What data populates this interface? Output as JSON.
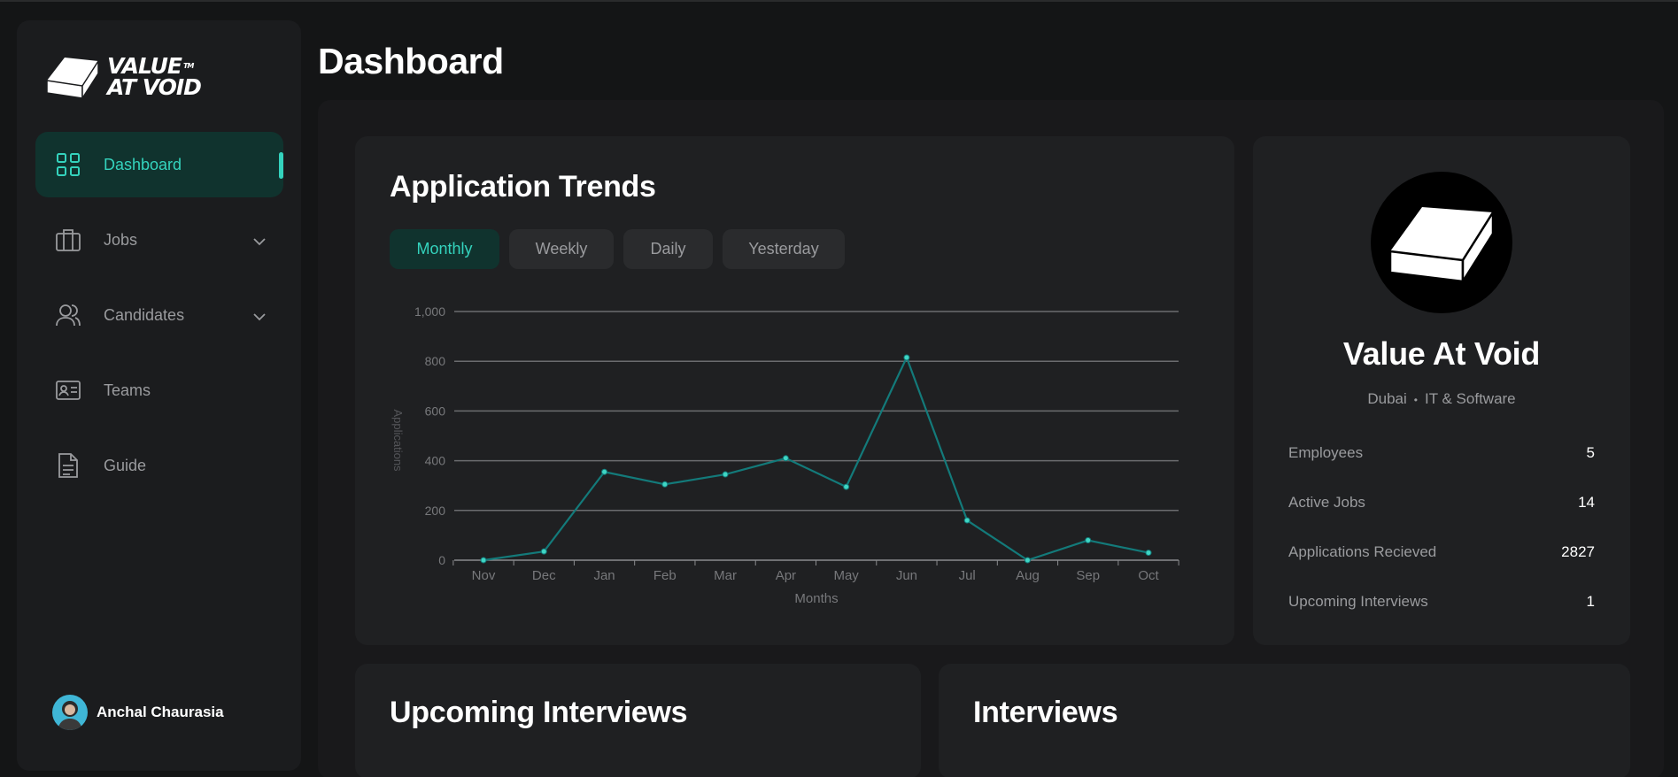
{
  "brand": {
    "line1": "VALUE",
    "line2": "AT VOID",
    "tm": "TM"
  },
  "sidebar": {
    "items": [
      {
        "label": "Dashboard",
        "icon": "grid-icon",
        "active": true
      },
      {
        "label": "Jobs",
        "icon": "briefcase-icon",
        "expandable": true
      },
      {
        "label": "Candidates",
        "icon": "users-icon",
        "expandable": true
      },
      {
        "label": "Teams",
        "icon": "id-card-icon"
      },
      {
        "label": "Guide",
        "icon": "document-icon"
      }
    ],
    "user": {
      "name": "Anchal Chaurasia"
    }
  },
  "page": {
    "title": "Dashboard"
  },
  "trends": {
    "title": "Application Trends",
    "tabs": [
      "Monthly",
      "Weekly",
      "Daily",
      "Yesterday"
    ],
    "active_tab": "Monthly"
  },
  "chart_data": {
    "type": "line",
    "categories": [
      "Nov",
      "Dec",
      "Jan",
      "Feb",
      "Mar",
      "Apr",
      "May",
      "Jun",
      "Jul",
      "Aug",
      "Sep",
      "Oct"
    ],
    "series": [
      {
        "values": [
          0,
          35,
          355,
          305,
          345,
          410,
          295,
          815,
          160,
          0,
          80,
          30
        ]
      }
    ],
    "xlabel": "Months",
    "ylabel": "Applications",
    "ylim": [
      0,
      1000
    ],
    "yticks": [
      "0",
      "200",
      "400",
      "600",
      "800",
      "1,000"
    ],
    "grid": true,
    "color": "#137a7a"
  },
  "company": {
    "name": "Value At Void",
    "location": "Dubai",
    "industry": "IT & Software",
    "separator": "•",
    "stats": [
      {
        "label": "Employees",
        "value": "5"
      },
      {
        "label": "Active Jobs",
        "value": "14"
      },
      {
        "label": "Applications Recieved",
        "value": "2827"
      },
      {
        "label": "Upcoming Interviews",
        "value": "1"
      }
    ]
  },
  "upcoming": {
    "title": "Upcoming Interviews"
  },
  "interviews": {
    "title": "Interviews"
  },
  "colors": {
    "accent": "#34d3bd",
    "accent_bg": "#10332e",
    "line": "#137a7a"
  }
}
